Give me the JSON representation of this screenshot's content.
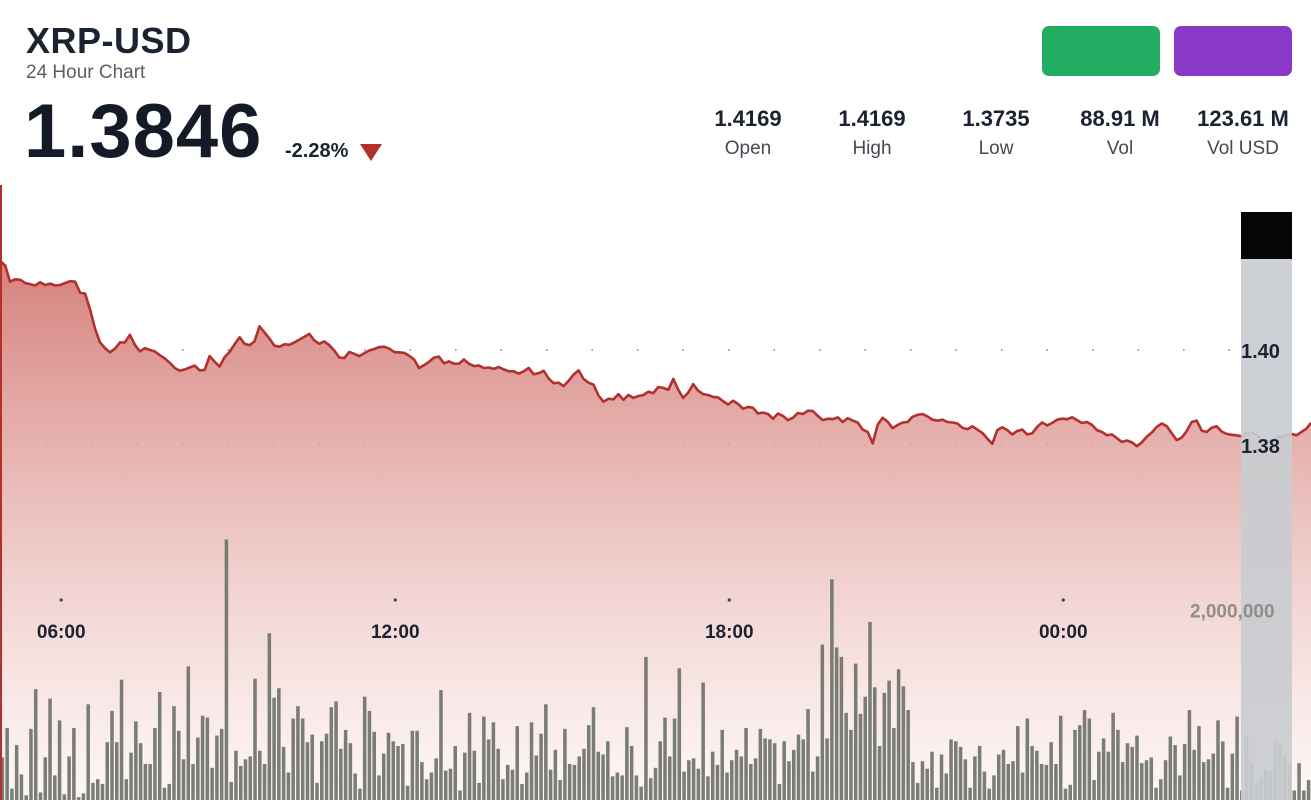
{
  "header": {
    "symbol": "XRP-USD",
    "subtitle": "24 Hour Chart",
    "price": "1.3846",
    "change": "-2.28%"
  },
  "buttons": [
    {
      "color": "#22ad62"
    },
    {
      "color": "#8a38c8"
    }
  ],
  "stats": [
    {
      "value": "1.4169",
      "label": "Open"
    },
    {
      "value": "1.4169",
      "label": "High"
    },
    {
      "value": "1.3735",
      "label": "Low"
    },
    {
      "value": "88.91 M",
      "label": "Vol"
    },
    {
      "value": "123.61 M",
      "label": "Vol USD"
    }
  ],
  "colors": {
    "line": "#b3302d",
    "area_top": "#d37a75",
    "volume": "#6f7369",
    "grid_dots": "#8a8a8a"
  },
  "chart_data": {
    "type": "line",
    "x_ticks": [
      "06:00",
      "12:00",
      "18:00",
      "00:00"
    ],
    "x_tick_hours": [
      6,
      12,
      18,
      24
    ],
    "x_range_hours": [
      4.9,
      28.45
    ],
    "y_price_ticks": [
      1.4,
      1.38
    ],
    "y_price_tick_labels": [
      "1.40",
      "1.38"
    ],
    "price_range": [
      1.3557,
      1.4348
    ],
    "volume_tick": 2000000,
    "volume_tick_label": "2,000,000",
    "volume_range": [
      0,
      3800000
    ],
    "grid": "dotted",
    "price_series": [
      [
        4.9,
        1.4188
      ],
      [
        4.995,
        1.4178
      ],
      [
        5.08,
        1.4144
      ],
      [
        5.17,
        1.4149
      ],
      [
        5.264,
        1.4148
      ],
      [
        5.354,
        1.4141
      ],
      [
        5.443,
        1.4139
      ],
      [
        5.533,
        1.4136
      ],
      [
        5.622,
        1.4143
      ],
      [
        5.712,
        1.4137
      ],
      [
        5.801,
        1.414
      ],
      [
        5.891,
        1.4136
      ],
      [
        5.98,
        1.4137
      ],
      [
        6.07,
        1.4141
      ],
      [
        6.159,
        1.4145
      ],
      [
        6.249,
        1.4144
      ],
      [
        6.338,
        1.4121
      ],
      [
        6.428,
        1.4119
      ],
      [
        6.517,
        1.4086
      ],
      [
        6.607,
        1.4045
      ],
      [
        6.696,
        1.4016
      ],
      [
        6.786,
        1.4004
      ],
      [
        6.875,
        1.3995
      ],
      [
        6.965,
        1.4003
      ],
      [
        7.055,
        1.4016
      ],
      [
        7.144,
        1.4016
      ],
      [
        7.234,
        1.4032
      ],
      [
        7.323,
        1.4011
      ],
      [
        7.413,
        1.3997
      ],
      [
        7.502,
        1.4004
      ],
      [
        7.592,
        1.4
      ],
      [
        7.681,
        1.3997
      ],
      [
        7.771,
        1.3989
      ],
      [
        7.86,
        1.3982
      ],
      [
        7.95,
        1.3973
      ],
      [
        8.04,
        1.3962
      ],
      [
        8.129,
        1.3956
      ],
      [
        8.219,
        1.3959
      ],
      [
        8.308,
        1.3963
      ],
      [
        8.398,
        1.3967
      ],
      [
        8.487,
        1.3957
      ],
      [
        8.577,
        1.3958
      ],
      [
        8.666,
        1.3987
      ],
      [
        8.756,
        1.3975
      ],
      [
        8.845,
        1.3965
      ],
      [
        8.935,
        1.3985
      ],
      [
        9.025,
        1.3996
      ],
      [
        9.114,
        1.4012
      ],
      [
        9.204,
        1.4027
      ],
      [
        9.293,
        1.4013
      ],
      [
        9.383,
        1.401
      ],
      [
        9.472,
        1.4018
      ],
      [
        9.562,
        1.405
      ],
      [
        9.651,
        1.4037
      ],
      [
        9.741,
        1.4024
      ],
      [
        9.83,
        1.4009
      ],
      [
        9.92,
        1.4007
      ],
      [
        10.01,
        1.4012
      ],
      [
        10.099,
        1.4011
      ],
      [
        10.189,
        1.4016
      ],
      [
        10.278,
        1.4022
      ],
      [
        10.368,
        1.4028
      ],
      [
        10.457,
        1.4034
      ],
      [
        10.547,
        1.402
      ],
      [
        10.636,
        1.4013
      ],
      [
        10.726,
        1.4018
      ],
      [
        10.815,
        1.401
      ],
      [
        10.905,
        1.3999
      ],
      [
        10.995,
        1.3984
      ],
      [
        11.084,
        1.3983
      ],
      [
        11.174,
        1.3996
      ],
      [
        11.263,
        1.3992
      ],
      [
        11.353,
        1.3987
      ],
      [
        11.442,
        1.3993
      ],
      [
        11.532,
        1.3999
      ],
      [
        11.621,
        1.4002
      ],
      [
        11.711,
        1.4006
      ],
      [
        11.8,
        1.4007
      ],
      [
        11.89,
        1.4003
      ],
      [
        11.98,
        1.3996
      ],
      [
        12.069,
        1.3995
      ],
      [
        12.159,
        1.3994
      ],
      [
        12.248,
        1.3988
      ],
      [
        12.338,
        1.398
      ],
      [
        12.427,
        1.3962
      ],
      [
        12.517,
        1.3968
      ],
      [
        12.606,
        1.3975
      ],
      [
        12.696,
        1.3984
      ],
      [
        12.785,
        1.3986
      ],
      [
        12.875,
        1.3972
      ],
      [
        12.965,
        1.3976
      ],
      [
        13.054,
        1.3971
      ],
      [
        13.144,
        1.3971
      ],
      [
        13.233,
        1.398
      ],
      [
        13.323,
        1.3971
      ],
      [
        13.412,
        1.3966
      ],
      [
        13.502,
        1.3967
      ],
      [
        13.591,
        1.3962
      ],
      [
        13.681,
        1.3963
      ],
      [
        13.77,
        1.396
      ],
      [
        13.86,
        1.3964
      ],
      [
        13.95,
        1.3959
      ],
      [
        14.039,
        1.3955
      ],
      [
        14.129,
        1.3955
      ],
      [
        14.218,
        1.395
      ],
      [
        14.308,
        1.3955
      ],
      [
        14.397,
        1.3962
      ],
      [
        14.487,
        1.3949
      ],
      [
        14.576,
        1.3951
      ],
      [
        14.666,
        1.3956
      ],
      [
        14.755,
        1.394
      ],
      [
        14.845,
        1.393
      ],
      [
        14.935,
        1.3931
      ],
      [
        15.024,
        1.3924
      ],
      [
        15.114,
        1.3935
      ],
      [
        15.203,
        1.3948
      ],
      [
        15.293,
        1.3957
      ],
      [
        15.382,
        1.3939
      ],
      [
        15.472,
        1.3931
      ],
      [
        15.561,
        1.3927
      ],
      [
        15.651,
        1.3904
      ],
      [
        15.74,
        1.3891
      ],
      [
        15.83,
        1.3897
      ],
      [
        15.92,
        1.3896
      ],
      [
        16.009,
        1.3907
      ],
      [
        16.099,
        1.3895
      ],
      [
        16.188,
        1.3905
      ],
      [
        16.278,
        1.3899
      ],
      [
        16.367,
        1.3903
      ],
      [
        16.457,
        1.3905
      ],
      [
        16.546,
        1.3912
      ],
      [
        16.636,
        1.3909
      ],
      [
        16.725,
        1.3922
      ],
      [
        16.815,
        1.392
      ],
      [
        16.905,
        1.3916
      ],
      [
        16.994,
        1.3939
      ],
      [
        17.084,
        1.3916
      ],
      [
        17.173,
        1.3899
      ],
      [
        17.263,
        1.391
      ],
      [
        17.352,
        1.3928
      ],
      [
        17.442,
        1.3914
      ],
      [
        17.531,
        1.3907
      ],
      [
        17.621,
        1.3905
      ],
      [
        17.71,
        1.3901
      ],
      [
        17.8,
        1.39
      ],
      [
        17.89,
        1.3892
      ],
      [
        17.979,
        1.3885
      ],
      [
        18.069,
        1.3893
      ],
      [
        18.158,
        1.3886
      ],
      [
        18.248,
        1.3876
      ],
      [
        18.337,
        1.388
      ],
      [
        18.427,
        1.3878
      ],
      [
        18.516,
        1.3866
      ],
      [
        18.606,
        1.3868
      ],
      [
        18.695,
        1.3865
      ],
      [
        18.785,
        1.3855
      ],
      [
        18.875,
        1.3866
      ],
      [
        18.964,
        1.3861
      ],
      [
        19.054,
        1.3852
      ],
      [
        19.143,
        1.3857
      ],
      [
        19.233,
        1.3867
      ],
      [
        19.322,
        1.3865
      ],
      [
        19.412,
        1.3872
      ],
      [
        19.501,
        1.3871
      ],
      [
        19.591,
        1.3861
      ],
      [
        19.68,
        1.3852
      ],
      [
        19.77,
        1.3855
      ],
      [
        19.86,
        1.3854
      ],
      [
        19.949,
        1.3858
      ],
      [
        20.039,
        1.3848
      ],
      [
        20.128,
        1.3856
      ],
      [
        20.218,
        1.3851
      ],
      [
        20.307,
        1.3847
      ],
      [
        20.397,
        1.3832
      ],
      [
        20.486,
        1.3827
      ],
      [
        20.576,
        1.3803
      ],
      [
        20.665,
        1.3842
      ],
      [
        20.755,
        1.3857
      ],
      [
        20.845,
        1.3849
      ],
      [
        20.934,
        1.3835
      ],
      [
        21.024,
        1.3842
      ],
      [
        21.113,
        1.3847
      ],
      [
        21.203,
        1.3848
      ],
      [
        21.292,
        1.3859
      ],
      [
        21.382,
        1.3863
      ],
      [
        21.471,
        1.3865
      ],
      [
        21.561,
        1.386
      ],
      [
        21.65,
        1.3853
      ],
      [
        21.74,
        1.3851
      ],
      [
        21.83,
        1.3853
      ],
      [
        21.919,
        1.3848
      ],
      [
        22.009,
        1.3847
      ],
      [
        22.098,
        1.3845
      ],
      [
        22.188,
        1.3836
      ],
      [
        22.277,
        1.3833
      ],
      [
        22.367,
        1.3839
      ],
      [
        22.456,
        1.3832
      ],
      [
        22.546,
        1.3825
      ],
      [
        22.635,
        1.3813
      ],
      [
        22.725,
        1.3802
      ],
      [
        22.815,
        1.3831
      ],
      [
        22.904,
        1.3837
      ],
      [
        22.994,
        1.3831
      ],
      [
        23.083,
        1.3822
      ],
      [
        23.173,
        1.3829
      ],
      [
        23.262,
        1.3832
      ],
      [
        23.352,
        1.3822
      ],
      [
        23.441,
        1.3824
      ],
      [
        23.531,
        1.3838
      ],
      [
        23.62,
        1.3847
      ],
      [
        23.71,
        1.3841
      ],
      [
        23.8,
        1.3846
      ],
      [
        23.889,
        1.3853
      ],
      [
        23.979,
        1.3855
      ],
      [
        24.068,
        1.3854
      ],
      [
        24.158,
        1.3858
      ],
      [
        24.247,
        1.3852
      ],
      [
        24.337,
        1.3846
      ],
      [
        24.426,
        1.3848
      ],
      [
        24.516,
        1.3842
      ],
      [
        24.605,
        1.3831
      ],
      [
        24.695,
        1.3827
      ],
      [
        24.785,
        1.382
      ],
      [
        24.874,
        1.3822
      ],
      [
        24.964,
        1.3814
      ],
      [
        25.053,
        1.3806
      ],
      [
        25.143,
        1.3809
      ],
      [
        25.232,
        1.3805
      ],
      [
        25.322,
        1.3797
      ],
      [
        25.411,
        1.3805
      ],
      [
        25.501,
        1.3817
      ],
      [
        25.59,
        1.3826
      ],
      [
        25.68,
        1.3838
      ],
      [
        25.77,
        1.3845
      ],
      [
        25.859,
        1.3839
      ],
      [
        25.949,
        1.3824
      ],
      [
        26.038,
        1.381
      ],
      [
        26.128,
        1.3815
      ],
      [
        26.217,
        1.3829
      ],
      [
        26.307,
        1.3848
      ],
      [
        26.396,
        1.3851
      ],
      [
        26.486,
        1.383
      ],
      [
        26.575,
        1.3827
      ],
      [
        26.665,
        1.3836
      ],
      [
        26.755,
        1.3839
      ],
      [
        26.844,
        1.3828
      ],
      [
        26.934,
        1.3823
      ],
      [
        27.023,
        1.3821
      ],
      [
        27.113,
        1.382
      ],
      [
        27.202,
        1.3818
      ],
      [
        27.292,
        1.3825
      ],
      [
        27.381,
        1.3826
      ],
      [
        27.471,
        1.3821
      ],
      [
        27.56,
        1.381
      ],
      [
        27.65,
        1.3805
      ],
      [
        27.74,
        1.3808
      ],
      [
        27.829,
        1.3815
      ],
      [
        27.919,
        1.3818
      ],
      [
        28.008,
        1.382
      ],
      [
        28.098,
        1.3823
      ],
      [
        28.187,
        1.382
      ],
      [
        28.277,
        1.3827
      ],
      [
        28.366,
        1.3834
      ],
      [
        28.45,
        1.3846
      ]
    ],
    "volume_series": [
      450000,
      760000,
      120000,
      580000,
      270000,
      50000,
      750000,
      1170000,
      80000,
      450000,
      1070000,
      260000,
      840000,
      60000,
      460000,
      760000,
      30000,
      70000,
      1010000,
      180000,
      220000,
      170000,
      610000,
      940000,
      610000,
      1270000,
      220000,
      500000,
      830000,
      600000,
      380000,
      380000,
      760000,
      1140000,
      130000,
      170000,
      990000,
      730000,
      430000,
      1410000,
      380000,
      660000,
      890000,
      870000,
      340000,
      680000,
      750000,
      2750000,
      190000,
      520000,
      360000,
      430000,
      460000,
      1280000,
      520000,
      380000,
      1760000,
      1080000,
      1180000,
      560000,
      290000,
      860000,
      990000,
      860000,
      610000,
      690000,
      180000,
      620000,
      700000,
      980000,
      1040000,
      540000,
      740000,
      600000,
      280000,
      120000,
      1090000,
      940000,
      720000,
      260000,
      490000,
      710000,
      620000,
      570000,
      590000,
      150000,
      730000,
      730000,
      400000,
      220000,
      290000,
      440000,
      1160000,
      310000,
      330000,
      570000,
      100000,
      500000,
      920000,
      520000,
      180000,
      880000,
      640000,
      820000,
      540000,
      220000,
      370000,
      320000,
      780000,
      170000,
      290000,
      820000,
      470000,
      700000,
      1010000,
      320000,
      530000,
      210000,
      750000,
      380000,
      370000,
      460000,
      540000,
      790000,
      980000,
      510000,
      480000,
      620000,
      250000,
      290000,
      260000,
      770000,
      570000,
      260000,
      140000,
      1510000,
      230000,
      340000,
      620000,
      870000,
      460000,
      860000,
      1390000,
      300000,
      420000,
      440000,
      330000,
      1240000,
      250000,
      510000,
      370000,
      740000,
      290000,
      420000,
      530000,
      460000,
      760000,
      380000,
      440000,
      750000,
      650000,
      640000,
      600000,
      170000,
      620000,
      410000,
      530000,
      690000,
      640000,
      960000,
      300000,
      460000,
      1640000,
      650000,
      2330000,
      1610000,
      1510000,
      920000,
      740000,
      1440000,
      910000,
      1090000,
      1880000,
      1190000,
      570000,
      1130000,
      1260000,
      760000,
      1380000,
      1200000,
      950000,
      400000,
      180000,
      410000,
      330000,
      510000,
      130000,
      480000,
      280000,
      640000,
      620000,
      560000,
      430000,
      130000,
      460000,
      570000,
      300000,
      120000,
      260000,
      480000,
      530000,
      380000,
      410000,
      780000,
      290000,
      860000,
      570000,
      520000,
      380000,
      370000,
      610000,
      380000,
      890000,
      120000,
      160000,
      740000,
      790000,
      950000,
      860000,
      210000,
      510000,
      650000,
      510000,
      920000,
      740000,
      400000,
      600000,
      560000,
      680000,
      390000,
      420000,
      450000,
      130000,
      220000,
      420000,
      670000,
      580000,
      260000,
      590000,
      950000,
      530000,
      780000,
      400000,
      430000,
      490000,
      840000,
      620000,
      130000,
      490000,
      880000,
      100000,
      680000,
      400000,
      170000,
      230000,
      320000,
      300000,
      620000,
      600000,
      480000,
      370000,
      100000,
      390000,
      100000,
      210000
    ]
  }
}
